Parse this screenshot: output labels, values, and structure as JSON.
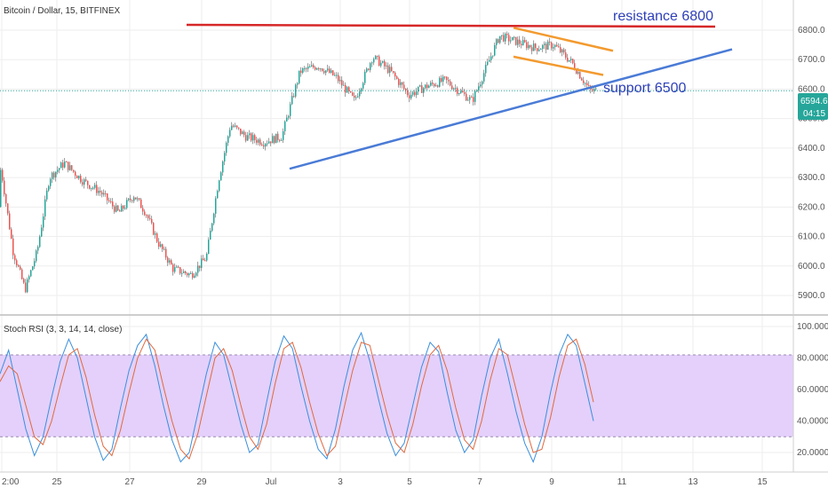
{
  "chart_title": "Bitcoin / Dollar, 15, BITFINEX",
  "indicator_title": "Stoch RSI (3, 3, 14, 14, close)",
  "colors": {
    "candle_up": "#26a69a",
    "candle_down": "#ef5350",
    "candle_wick": "#555555",
    "resistance": "#d62728",
    "support": "#4a7bd6",
    "channel": "#f39a2f",
    "stoch_k": "#3a8fdc",
    "stoch_d": "#e0693f",
    "stoch_band": "#e4d0fb",
    "annotation": "#2e3fb8",
    "price_badge": "#26a69a",
    "grid": "#eeeeee"
  },
  "annotations": {
    "resistance_label": "resistance 6800",
    "support_label": "support 6500"
  },
  "price_badge": {
    "price": "6594.6",
    "countdown": "04:15"
  },
  "chart_data": [
    {
      "type": "candlestick",
      "title": "Bitcoin / Dollar, 15, BITFINEX",
      "x_tick_labels": [
        "2:00",
        "25",
        "27",
        "29",
        "Jul",
        "3",
        "5",
        "7",
        "9",
        "11",
        "13",
        "15"
      ],
      "y_ticks": [
        "5900.0",
        "6000.0",
        "6100.0",
        "6200.0",
        "6300.0",
        "6400.0",
        "6500.0",
        "6600.0",
        "6700.0",
        "6800.0"
      ],
      "ylim": [
        5850,
        6870
      ],
      "current_price": 6594.6,
      "anchors": [
        {
          "x": "Jun 24",
          "y": 6200
        },
        {
          "x": "Jun 24",
          "y": 6330
        },
        {
          "x": "Jun 24",
          "y": 6050
        },
        {
          "x": "Jun 25",
          "y": 5920
        },
        {
          "x": "Jun 25",
          "y": 6050
        },
        {
          "x": "Jun 25",
          "y": 6300
        },
        {
          "x": "Jun 26",
          "y": 6350
        },
        {
          "x": "Jun 26",
          "y": 6290
        },
        {
          "x": "Jun 27",
          "y": 6250
        },
        {
          "x": "Jun 27",
          "y": 6180
        },
        {
          "x": "Jun 28",
          "y": 6240
        },
        {
          "x": "Jun 28",
          "y": 6180
        },
        {
          "x": "Jun 28",
          "y": 6080
        },
        {
          "x": "Jun 29",
          "y": 5990
        },
        {
          "x": "Jun 29",
          "y": 5970
        },
        {
          "x": "Jun 30",
          "y": 6030
        },
        {
          "x": "Jun 30",
          "y": 6290
        },
        {
          "x": "Jun 30",
          "y": 6480
        },
        {
          "x": "Jul 1",
          "y": 6440
        },
        {
          "x": "Jul 1",
          "y": 6420
        },
        {
          "x": "Jul 2",
          "y": 6440
        },
        {
          "x": "Jul 2",
          "y": 6660
        },
        {
          "x": "Jul 3",
          "y": 6680
        },
        {
          "x": "Jul 3",
          "y": 6640
        },
        {
          "x": "Jul 4",
          "y": 6560
        },
        {
          "x": "Jul 4",
          "y": 6710
        },
        {
          "x": "Jul 5",
          "y": 6660
        },
        {
          "x": "Jul 5",
          "y": 6580
        },
        {
          "x": "Jul 6",
          "y": 6610
        },
        {
          "x": "Jul 6",
          "y": 6630
        },
        {
          "x": "Jul 7",
          "y": 6560
        },
        {
          "x": "Jul 8",
          "y": 6780
        },
        {
          "x": "Jul 8",
          "y": 6760
        },
        {
          "x": "Jul 9",
          "y": 6740
        },
        {
          "x": "Jul 9",
          "y": 6750
        },
        {
          "x": "Jul 10",
          "y": 6690
        },
        {
          "x": "Jul 10",
          "y": 6595
        }
      ]
    },
    {
      "type": "line",
      "title": "Stoch RSI (3, 3, 14, 14, close)",
      "y_ticks": [
        "20.0000",
        "40.0000",
        "60.0000",
        "80.0000",
        "100.0000"
      ],
      "ylim": [
        10,
        105
      ],
      "band": [
        30,
        82
      ],
      "series": [
        {
          "name": "",
          "values": [
            70,
            85,
            60,
            35,
            18,
            30,
            55,
            78,
            92,
            80,
            55,
            30,
            15,
            22,
            48,
            72,
            88,
            95,
            75,
            50,
            28,
            14,
            20,
            45,
            70,
            90,
            82,
            60,
            38,
            20,
            25,
            52,
            78,
            94,
            86,
            62,
            40,
            22,
            16,
            35,
            62,
            85,
            96,
            78,
            54,
            32,
            18,
            26,
            50,
            74,
            90,
            84,
            58,
            34,
            20,
            28,
            56,
            80,
            92,
            70,
            46,
            26,
            14,
            30,
            58,
            82,
            95,
            88,
            64,
            40
          ]
        },
        {
          "name": "",
          "values": [
            65,
            75,
            70,
            50,
            30,
            25,
            40,
            62,
            82,
            86,
            68,
            44,
            24,
            18,
            34,
            58,
            80,
            92,
            85,
            62,
            40,
            22,
            16,
            32,
            56,
            80,
            86,
            72,
            50,
            30,
            22,
            38,
            64,
            86,
            90,
            74,
            52,
            32,
            18,
            24,
            48,
            72,
            90,
            88,
            66,
            44,
            26,
            20,
            38,
            62,
            82,
            88,
            72,
            48,
            28,
            22,
            40,
            66,
            86,
            82,
            60,
            38,
            20,
            22,
            42,
            68,
            88,
            92,
            76,
            52
          ]
        }
      ]
    }
  ]
}
